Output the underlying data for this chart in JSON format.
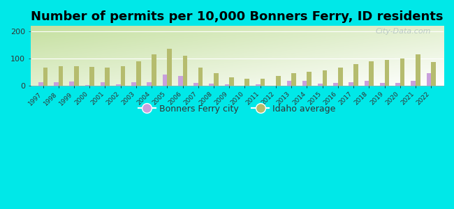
{
  "title": "Number of permits per 10,000 Bonners Ferry, ID residents",
  "years": [
    1997,
    1998,
    1999,
    2000,
    2001,
    2002,
    2003,
    2004,
    2005,
    2006,
    2007,
    2008,
    2009,
    2010,
    2011,
    2012,
    2013,
    2014,
    2015,
    2016,
    2017,
    2018,
    2019,
    2020,
    2021,
    2022
  ],
  "city_values": [
    12,
    13,
    15,
    2,
    12,
    5,
    12,
    12,
    40,
    35,
    10,
    8,
    3,
    0,
    3,
    0,
    17,
    18,
    8,
    10,
    12,
    18,
    10,
    10,
    18,
    45
  ],
  "state_values": [
    65,
    72,
    72,
    68,
    65,
    72,
    90,
    115,
    135,
    110,
    65,
    45,
    30,
    25,
    25,
    35,
    45,
    50,
    55,
    65,
    78,
    90,
    95,
    100,
    115,
    88
  ],
  "ylim": [
    0,
    220
  ],
  "yticks": [
    0,
    100,
    200
  ],
  "city_color": "#c9a0dc",
  "state_color": "#b5bc6e",
  "outer_bg": "#00e8e8",
  "legend_city": "Bonners Ferry city",
  "legend_state": "Idaho average",
  "title_fontsize": 13,
  "watermark": "City-Data.com"
}
